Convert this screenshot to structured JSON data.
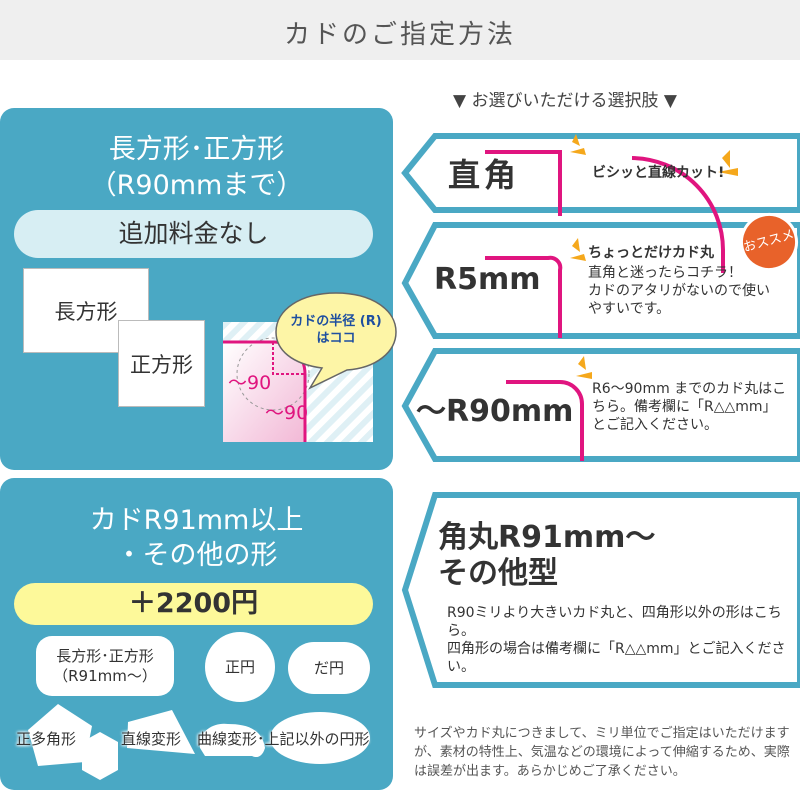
{
  "header": {
    "title": "カドのご指定方法"
  },
  "subtitle": "▼ お選びいただける選択肢 ▼",
  "left_panel_1": {
    "title_line1": "長方形･正方形",
    "title_line2": "（R90mmまで）",
    "price_label": "追加料金なし",
    "rect_label": "長方形",
    "square_label": "正方形",
    "bubble_line1": "カドの半径 (R)",
    "bubble_line2": "はココ",
    "dim1": "～90",
    "dim2": "～90"
  },
  "left_panel_2": {
    "title_line1": "カドR91mm以上",
    "title_line2": "・その他の形",
    "price_label": "＋2200円",
    "shapes": {
      "rect_line1": "長方形･正方形",
      "rect_line2": "（R91mm～）",
      "circle": "正円",
      "ellipse": "だ円",
      "polygon": "正多角形",
      "straight": "直線変形",
      "curved": "曲線変形･上記以外の円形"
    }
  },
  "options": [
    {
      "name": "直角",
      "desc_bold": "ビシッと直線カット!"
    },
    {
      "name": "R5mm",
      "desc_bold": "ちょっとだけカド丸",
      "desc": "直角と迷ったらコチラ！\nカドのアタリがないので使いやすいです。",
      "badge": "おススメ"
    },
    {
      "name": "～R90mm",
      "desc": "R6～90mm までのカド丸はこちら。備考欄に「R△△mm」とご記入ください。"
    },
    {
      "name_line1": "角丸R91mm～",
      "name_line2": "その他型",
      "desc": "R90ミリより大きいカド丸と、四角形以外の形はこちら。\n四角形の場合は備考欄に「R△△mm」とご記入ください。"
    }
  ],
  "note": "サイズやカド丸につきまして、ミリ単位でご指定はいただけますが、素材の特性上、気温などの環境によって伸縮するため、実際は誤差が出ます。あらかじめご了承ください。",
  "colors": {
    "teal": "#4aa8c4",
    "magenta": "#e0157f",
    "yellow": "#fdf99a",
    "light_blue": "#d7eef3",
    "orange_badge": "#e8622a",
    "accent_orange": "#f5a81c"
  }
}
